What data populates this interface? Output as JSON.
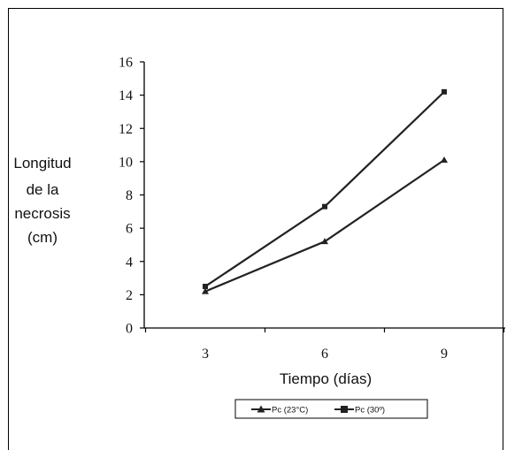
{
  "chart_data": {
    "type": "line",
    "x": [
      3,
      6,
      9
    ],
    "x_tick_labels": [
      "3",
      "6",
      "9"
    ],
    "y_tick_labels": [
      "0",
      "2",
      "4",
      "6",
      "8",
      "10",
      "12",
      "14",
      "16"
    ],
    "ylim": [
      0,
      16
    ],
    "grid": false,
    "legend_position": "bottom",
    "xlabel": "Tiempo (días)",
    "ylabel_lines": [
      "Longitud",
      "de la",
      "necrosis",
      "(cm)"
    ],
    "series": [
      {
        "name": "Pc (23°C)",
        "marker": "triangle",
        "color": "#222222",
        "values": [
          2.2,
          5.2,
          10.1
        ]
      },
      {
        "name": "Pc (30º)",
        "marker": "square",
        "color": "#222222",
        "values": [
          2.5,
          7.3,
          14.2
        ]
      }
    ]
  }
}
